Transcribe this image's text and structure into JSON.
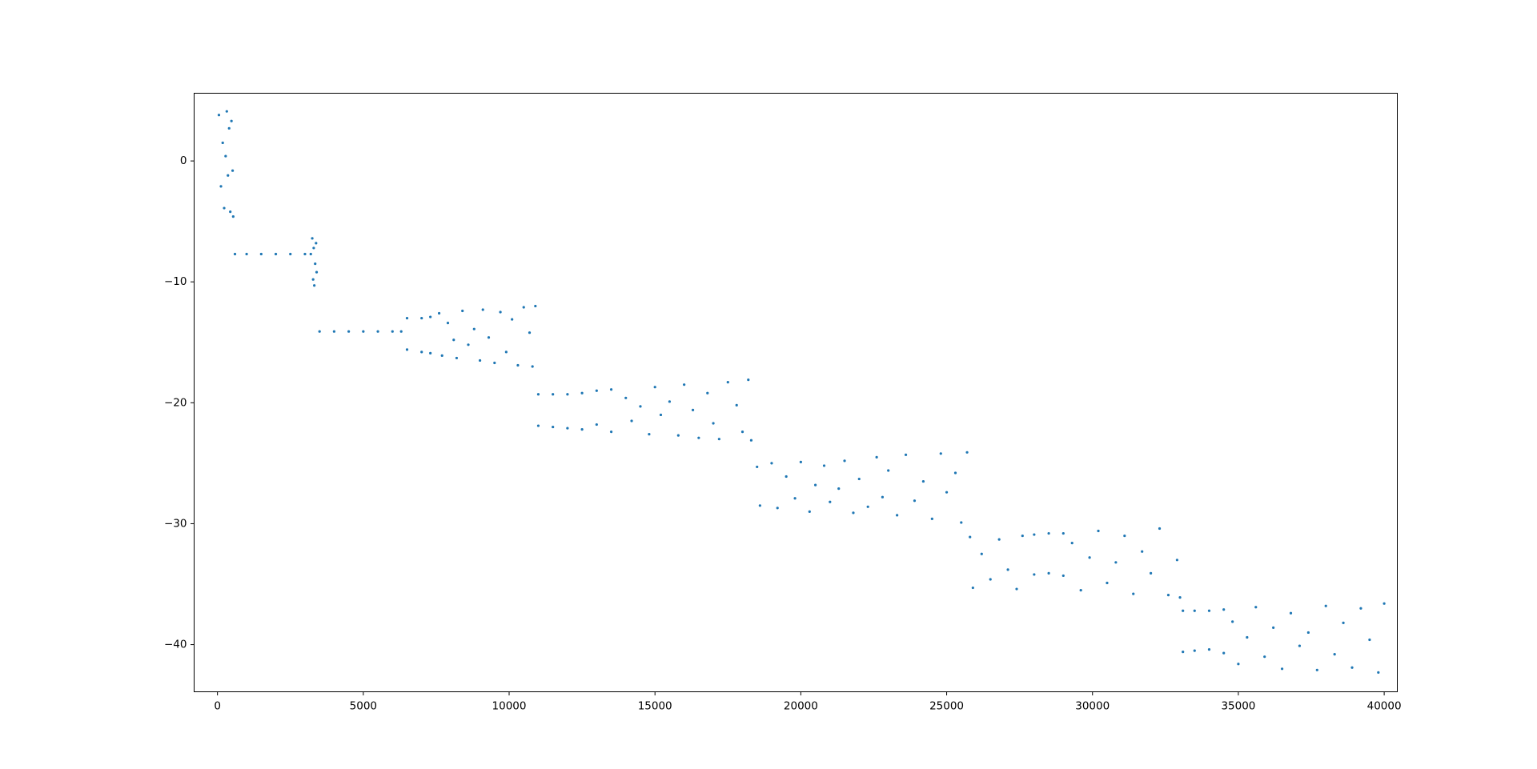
{
  "chart_data": {
    "type": "scatter",
    "color": "#1f77b4",
    "xlim": [
      -800,
      40450
    ],
    "ylim": [
      -43.9,
      5.6
    ],
    "xticks": [
      0,
      5000,
      10000,
      15000,
      20000,
      25000,
      30000,
      35000,
      40000
    ],
    "yticks": [
      {
        "value": -40,
        "label": "−40"
      },
      {
        "value": -30,
        "label": "−30"
      },
      {
        "value": -20,
        "label": "−20"
      },
      {
        "value": -10,
        "label": "−10"
      },
      0
    ],
    "x": [
      50,
      120,
      180,
      230,
      280,
      320,
      360,
      400,
      440,
      480,
      520,
      540,
      600,
      1000,
      1500,
      2000,
      2500,
      3000,
      3200,
      3250,
      3280,
      3300,
      3320,
      3350,
      3380,
      3400,
      3500,
      4000,
      4500,
      5000,
      5500,
      6000,
      6300,
      6500,
      6500,
      7000,
      7000,
      7300,
      7300,
      7600,
      7700,
      7900,
      8100,
      8200,
      8400,
      8600,
      8800,
      9000,
      9100,
      9300,
      9500,
      9700,
      9900,
      10100,
      10300,
      10500,
      10700,
      10800,
      10900,
      11000,
      11500,
      12000,
      12500,
      11000,
      11500,
      12000,
      12500,
      13000,
      13000,
      13500,
      13500,
      14000,
      14200,
      14500,
      14800,
      15000,
      15200,
      15500,
      15800,
      16000,
      16300,
      16500,
      16800,
      17000,
      17200,
      17500,
      17800,
      18000,
      18200,
      18300,
      18500,
      18600,
      19000,
      19200,
      19500,
      19800,
      20000,
      20300,
      20500,
      20800,
      21000,
      21300,
      21500,
      21800,
      22000,
      22300,
      22600,
      22800,
      23000,
      23300,
      23600,
      23900,
      24200,
      24500,
      24800,
      25000,
      25300,
      25500,
      25700,
      25800,
      25900,
      26200,
      26500,
      26800,
      27100,
      27400,
      27600,
      28000,
      28000,
      28500,
      28500,
      29000,
      29000,
      29300,
      29600,
      29900,
      30200,
      30500,
      30800,
      31100,
      31400,
      31700,
      32000,
      32300,
      32600,
      32900,
      33000,
      33100,
      33100,
      33500,
      33500,
      34000,
      34000,
      34500,
      34500,
      34800,
      35000,
      35300,
      35600,
      35900,
      36200,
      36500,
      36800,
      37100,
      37400,
      37700,
      38000,
      38300,
      38600,
      38900,
      39200,
      39500,
      39800,
      40000
    ],
    "y": [
      3.8,
      -2.1,
      1.5,
      -3.9,
      0.4,
      4.1,
      -1.2,
      2.7,
      -4.2,
      3.3,
      -0.8,
      -4.6,
      -7.7,
      -7.7,
      -7.7,
      -7.7,
      -7.7,
      -7.7,
      -7.7,
      -6.4,
      -9.8,
      -7.2,
      -10.3,
      -8.5,
      -6.8,
      -9.2,
      -14.1,
      -14.1,
      -14.1,
      -14.1,
      -14.1,
      -14.1,
      -14.1,
      -13.0,
      -15.6,
      -13.0,
      -15.8,
      -12.9,
      -15.9,
      -12.6,
      -16.1,
      -13.4,
      -14.8,
      -16.3,
      -12.4,
      -15.2,
      -13.9,
      -16.5,
      -12.3,
      -14.6,
      -16.7,
      -12.5,
      -15.8,
      -13.1,
      -16.9,
      -12.1,
      -14.2,
      -17.0,
      -12.0,
      -19.3,
      -19.3,
      -19.3,
      -19.2,
      -21.9,
      -22.0,
      -22.1,
      -22.2,
      -19.0,
      -21.8,
      -18.9,
      -22.4,
      -19.6,
      -21.5,
      -20.3,
      -22.6,
      -18.7,
      -21.0,
      -19.9,
      -22.7,
      -18.5,
      -20.6,
      -22.9,
      -19.2,
      -21.7,
      -23.0,
      -18.3,
      -20.2,
      -22.4,
      -18.1,
      -23.1,
      -25.3,
      -28.5,
      -25.0,
      -28.7,
      -26.1,
      -27.9,
      -24.9,
      -29.0,
      -26.8,
      -25.2,
      -28.2,
      -27.1,
      -24.8,
      -29.1,
      -26.3,
      -28.6,
      -24.5,
      -27.8,
      -25.6,
      -29.3,
      -24.3,
      -28.1,
      -26.5,
      -29.6,
      -24.2,
      -27.4,
      -25.8,
      -29.9,
      -24.1,
      -31.1,
      -35.3,
      -32.5,
      -34.6,
      -31.3,
      -33.8,
      -35.4,
      -31.0,
      -30.9,
      -34.2,
      -30.8,
      -34.1,
      -30.8,
      -34.3,
      -31.6,
      -35.5,
      -32.8,
      -30.6,
      -34.9,
      -33.2,
      -31.0,
      -35.8,
      -32.3,
      -34.1,
      -30.4,
      -35.9,
      -33.0,
      -36.1,
      -37.2,
      -40.6,
      -37.2,
      -40.5,
      -37.2,
      -40.4,
      -37.1,
      -40.7,
      -38.1,
      -41.6,
      -39.4,
      -36.9,
      -41.0,
      -38.6,
      -42.0,
      -37.4,
      -40.1,
      -39.0,
      -42.1,
      -36.8,
      -40.8,
      -38.2,
      -41.9,
      -37.0,
      -39.6,
      -42.3,
      -36.6
    ]
  }
}
